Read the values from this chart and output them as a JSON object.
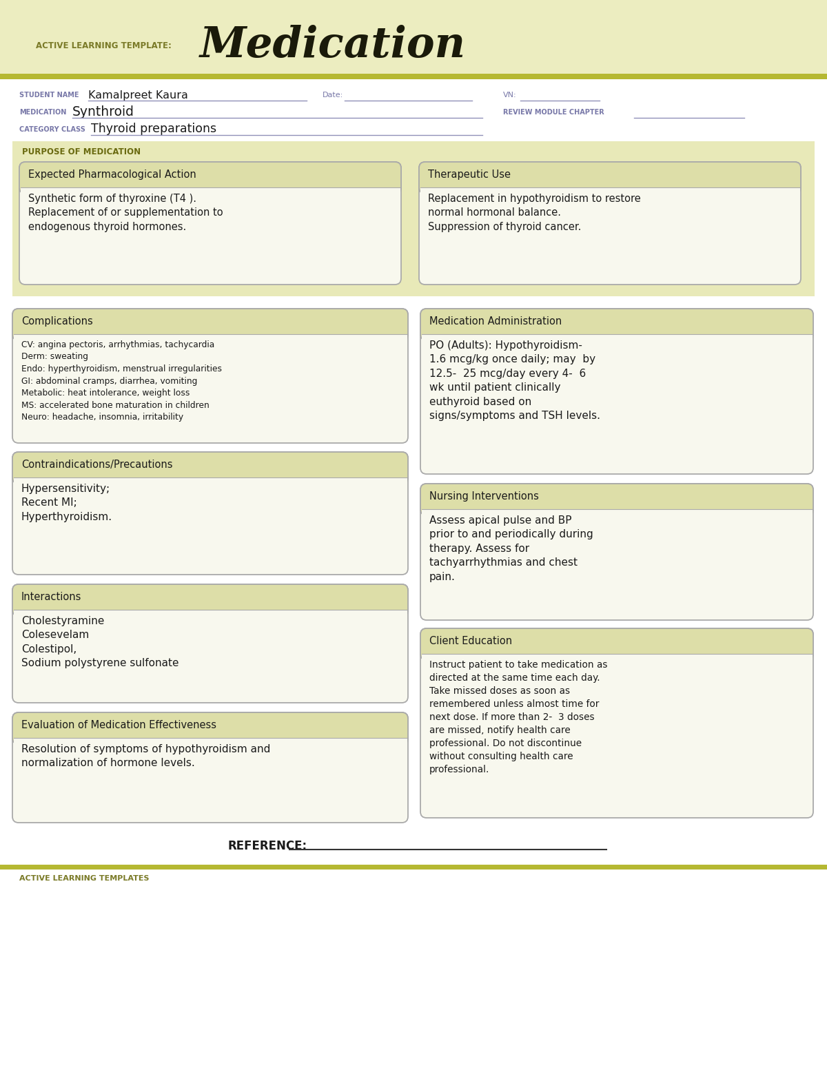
{
  "title": "Medication",
  "title_label": "ACTIVE LEARNING TEMPLATE:",
  "header_bg_color": "#ecedc0",
  "white": "#ffffff",
  "stripe_color": "#b5b832",
  "purple_label": "#7878a8",
  "dark_text": "#1a1a1a",
  "student_name": "Kamalpreet Kaura",
  "medication": "Synthroid",
  "category_class": "Thyroid preparations",
  "purpose_label": "PURPOSE OF MEDICATION",
  "epa_title": "Expected Pharmacological Action",
  "epa_text": "Synthetic form of thyroxine (T4 ).\nReplacement of or supplementation to\nendogenous thyroid hormones.",
  "tu_title": "Therapeutic Use",
  "tu_text": "Replacement in hypothyroidism to restore\nnormal hormonal balance.\nSuppression of thyroid cancer.",
  "comp_title": "Complications",
  "comp_text": "CV: angina pectoris, arrhythmias, tachycardia\nDerm: sweating\nEndo: hyperthyroidism, menstrual irregularities\nGI: abdominal cramps, diarrhea, vomiting\nMetabolic: heat intolerance, weight loss\nMS: accelerated bone maturation in children\nNeuro: headache, insomnia, irritability",
  "ma_title": "Medication Administration",
  "ma_text": "PO (Adults): Hypothyroidism-\n1.6 mcg/kg once daily; may  by\n12.5-  25 mcg/day every 4-  6\nwk until patient clinically\neuthyroid based on\nsigns/symptoms and TSH levels.",
  "ci_title": "Contraindications/Precautions",
  "ci_text": "Hypersensitivity;\nRecent MI;\nHyperthyroidism.",
  "ni_title": "Nursing Interventions",
  "ni_text": "Assess apical pulse and BP\nprior to and periodically during\ntherapy. Assess for\ntachyarrhythmias and chest\npain.",
  "int_title": "Interactions",
  "int_text": "Cholestyramine\nColesevelam\nColestipol,\nSodium polystyrene sulfonate",
  "ce_title": "Client Education",
  "ce_text": "Instruct patient to take medication as\ndirected at the same time each day.\nTake missed doses as soon as\nremembered unless almost time for\nnext dose. If more than 2-  3 doses\nare missed, notify health care\nprofessional. Do not discontinue\nwithout consulting health care\nprofessional.",
  "eval_title": "Evaluation of Medication Effectiveness",
  "eval_text": "Resolution of symptoms of hypothyroidism and\nnormalization of hormone levels.",
  "footer_label": "ACTIVE LEARNING TEMPLATES",
  "reference_label": "REFERENCE:",
  "card_header_bg": "#dddea8",
  "card_body_bg": "#f8f8ee",
  "card_border": "#aaaaaa",
  "purpose_section_bg": "#e8e9b8",
  "label_green": "#6a6a10"
}
